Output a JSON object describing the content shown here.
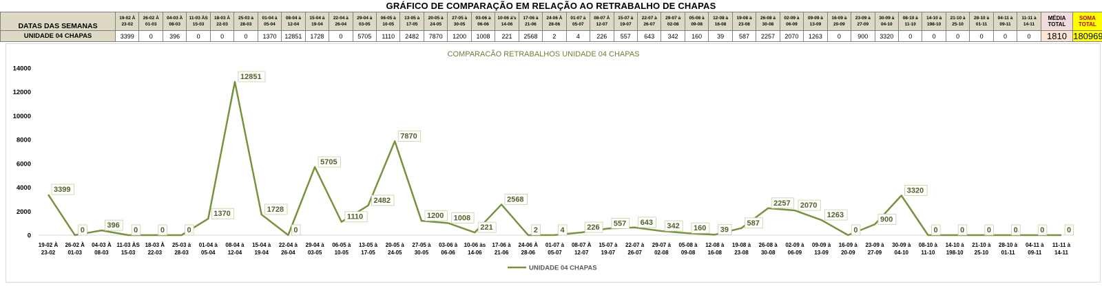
{
  "page_title": "GRÁFICO DE COMPARAÇÃO EM RELAÇÃO AO RETRABALHO DE CHAPAS",
  "table": {
    "header_label": "DATAS DAS SEMANAS",
    "row_label": "UNIDADE 04 CHAPAS",
    "weeks": [
      [
        "19-02 À",
        "23-02"
      ],
      [
        "26-02 À",
        "01-03"
      ],
      [
        "04-03 À",
        "08-03"
      ],
      [
        "11-03 ÀS",
        "15-03"
      ],
      [
        "18-03 À",
        "22-03"
      ],
      [
        "25-03 à",
        "28-03"
      ],
      [
        "01-04 à",
        "05-04"
      ],
      [
        "08-04 à",
        "12-04"
      ],
      [
        "15-04 à",
        "19-04"
      ],
      [
        "22-04 à",
        "26-04"
      ],
      [
        "29-04 à",
        "03-05"
      ],
      [
        "06-05 à",
        "10-05"
      ],
      [
        "13-05 à",
        "17-05"
      ],
      [
        "20-05 à",
        "24-05"
      ],
      [
        "27-05 à",
        "30-05"
      ],
      [
        "03-06 à",
        "06-06"
      ],
      [
        "10-06 à's",
        "14-06"
      ],
      [
        "17-06 à",
        "21-06"
      ],
      [
        "24-06 À",
        "28-06"
      ],
      [
        "01-07 à",
        "05-07"
      ],
      [
        "08-07 À",
        "12-07"
      ],
      [
        "15-07 à",
        "19-07"
      ],
      [
        "22-07 à",
        "26-07"
      ],
      [
        "29-07 à",
        "02-08"
      ],
      [
        "05-08 à",
        "09-08"
      ],
      [
        "12-08 à",
        "16-08"
      ],
      [
        "19-08 à",
        "23-08"
      ],
      [
        "26-08 à",
        "30-08"
      ],
      [
        "02-09 à",
        "06-09"
      ],
      [
        "09-09 à",
        "13-09"
      ],
      [
        "16-09 à",
        "20-09"
      ],
      [
        "23-09 à",
        "27-09"
      ],
      [
        "30-09 à",
        "04-10"
      ],
      [
        "08-10 à",
        "11-10"
      ],
      [
        "14-10 à",
        "198-10"
      ],
      [
        "21-10 à",
        "25-10"
      ],
      [
        "28-10 à",
        "01-11"
      ],
      [
        "04-11 à",
        "09-11"
      ],
      [
        "11-11 à",
        "14-11"
      ]
    ],
    "values": [
      "3399",
      "0",
      "396",
      "0",
      "0",
      "0",
      "1370",
      "12851",
      "1728",
      "0",
      "5705",
      "1110",
      "2482",
      "7870",
      "1200",
      "1008",
      "221",
      "2568",
      "2",
      "4",
      "226",
      "557",
      "643",
      "342",
      "160",
      "39",
      "587",
      "2257",
      "2070",
      "1263",
      "0",
      "900",
      "3320",
      "0",
      "0",
      "0",
      "0",
      "0",
      "0"
    ],
    "media_header": [
      "MÉDIA",
      "TOTAL"
    ],
    "media_value": "1810",
    "soma_header": [
      "SOMA",
      "TOTAL"
    ],
    "soma_value": "180969",
    "colors": {
      "header_bg": "#ddd9c4",
      "media_header_bg": "#f2dcdb",
      "media_value_bg": "#fce4d6",
      "soma_bg": "#ffff00",
      "soma_header_text": "#c00000"
    }
  },
  "chart_data": {
    "type": "line",
    "title": "COMPARACÃO RETRABALHOS UNIDADE 04 CHAPAS",
    "categories": [
      [
        "19-02 À",
        "23-02"
      ],
      [
        "26-02 À",
        "01-03"
      ],
      [
        "04-03 À",
        "08-03"
      ],
      [
        "11-03 ÀS",
        "15-03"
      ],
      [
        "18-03 À",
        "22-03"
      ],
      [
        "25-03 à",
        "28-03"
      ],
      [
        "01-04 à",
        "05-04"
      ],
      [
        "08-04 à",
        "12-04"
      ],
      [
        "15-04 à",
        "19-04"
      ],
      [
        "22-04 à",
        "26-04"
      ],
      [
        "29-04 à",
        "03-05"
      ],
      [
        "06-05 à",
        "10-05"
      ],
      [
        "13-05 à",
        "17-05"
      ],
      [
        "20-05 à",
        "24-05"
      ],
      [
        "27-05 à",
        "30-05"
      ],
      [
        "03-06 à",
        "06-06"
      ],
      [
        "10-06 às",
        "14-06"
      ],
      [
        "17-06 à",
        "21-06"
      ],
      [
        "24-06 À",
        "28-06"
      ],
      [
        "01-07 à",
        "05-07"
      ],
      [
        "08-07 À",
        "12-07"
      ],
      [
        "15-07 à",
        "19-07"
      ],
      [
        "22-07 à",
        "26-07"
      ],
      [
        "29-07 à",
        "02-08"
      ],
      [
        "05-08 à",
        "09-08"
      ],
      [
        "12-08 à",
        "16-08"
      ],
      [
        "19-08 à",
        "23-08"
      ],
      [
        "26-08 à",
        "30-08"
      ],
      [
        "02-09 à",
        "06-09"
      ],
      [
        "09-09 à",
        "13-09"
      ],
      [
        "16-09 à",
        "20-09"
      ],
      [
        "23-09 à",
        "27-09"
      ],
      [
        "30-09 à",
        "04-10"
      ],
      [
        "08-10 à",
        "11-10"
      ],
      [
        "14-10 à",
        "198-10"
      ],
      [
        "21-10 à",
        "25-10"
      ],
      [
        "28-10 à",
        "01-11"
      ],
      [
        "04-11 à",
        "09-11"
      ],
      [
        "11-11 à",
        "14-11"
      ]
    ],
    "series": [
      {
        "name": "UNIDADE 04 CHAPAS",
        "color": "#76923c",
        "values": [
          3399,
          0,
          396,
          0,
          0,
          0,
          1370,
          12851,
          1728,
          0,
          5705,
          1110,
          2482,
          7870,
          1200,
          1008,
          221,
          2568,
          2,
          4,
          226,
          557,
          643,
          342,
          160,
          39,
          587,
          2257,
          2070,
          1263,
          0,
          900,
          3320,
          0,
          0,
          0,
          0,
          0,
          0
        ]
      }
    ],
    "yticks": [
      0,
      2000,
      4000,
      6000,
      8000,
      10000,
      12000,
      14000
    ],
    "ylim": [
      0,
      14000
    ],
    "grid": false,
    "legend": "bottom"
  }
}
